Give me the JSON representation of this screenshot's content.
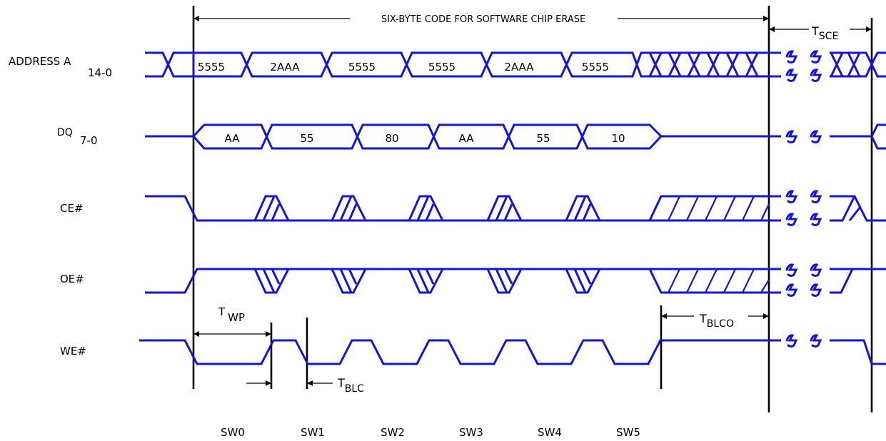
{
  "title": "SIX-BYTE CODE FOR SOFTWARE CHIP ERASE",
  "signals": {
    "address": {
      "name": "ADDRESS A",
      "sub": "14-0"
    },
    "dq": {
      "name": "DQ",
      "sub": "7-0"
    },
    "ce": {
      "name": "CE#"
    },
    "oe": {
      "name": "OE#"
    },
    "we": {
      "name": "WE#"
    }
  },
  "address_values": [
    "5555",
    "2AAA",
    "5555",
    "5555",
    "2AAA",
    "5555"
  ],
  "data_values": [
    "AA",
    "55",
    "80",
    "AA",
    "55",
    "10"
  ],
  "timings": {
    "tsce": {
      "main": "T",
      "sub": "SCE"
    },
    "twp": {
      "main": "T",
      "sub": "WP"
    },
    "tblc": {
      "main": "T",
      "sub": "BLC"
    },
    "tblco": {
      "main": "T",
      "sub": "BLCO"
    }
  },
  "write_cycles": [
    "SW0",
    "SW1",
    "SW2",
    "SW3",
    "SW4",
    "SW5"
  ],
  "colors": {
    "signal": "#1515d6",
    "markers": "#000000"
  }
}
